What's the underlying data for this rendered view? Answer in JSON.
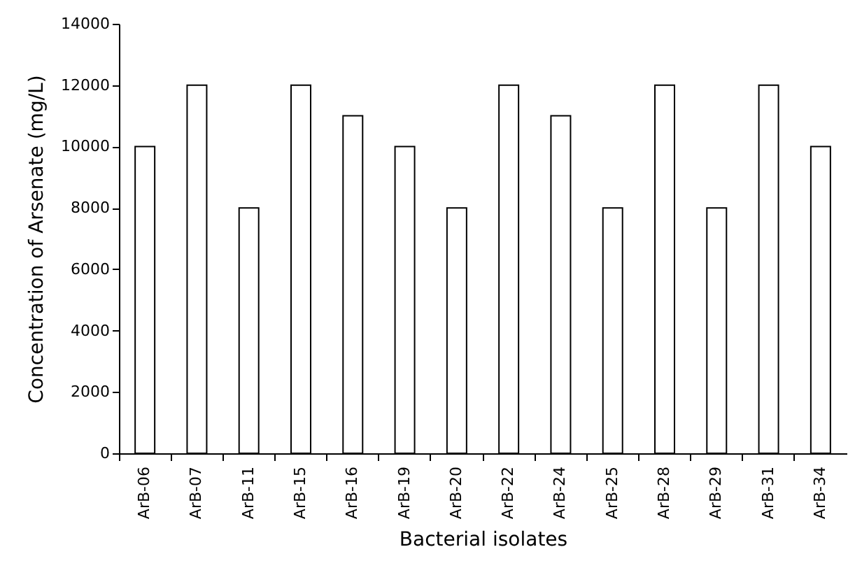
{
  "chart_data": {
    "type": "bar",
    "xlabel": "Bacterial isolates",
    "ylabel": "Concentration of Arsenate (mg/L)",
    "categories": [
      "ArB-06",
      "ArB-07",
      "ArB-11",
      "ArB-15",
      "ArB-16",
      "ArB-19",
      "ArB-20",
      "ArB-22",
      "ArB-24",
      "ArB-25",
      "ArB-28",
      "ArB-29",
      "ArB-31",
      "ArB-34"
    ],
    "values": [
      10000,
      12000,
      8000,
      12000,
      11000,
      10000,
      8000,
      12000,
      11000,
      8000,
      12000,
      8000,
      12000,
      10000
    ],
    "color": "#ffffff",
    "ylim": [
      0,
      14000
    ],
    "yticks": [
      0,
      2000,
      4000,
      6000,
      8000,
      10000,
      12000,
      14000
    ],
    "grid": false
  }
}
